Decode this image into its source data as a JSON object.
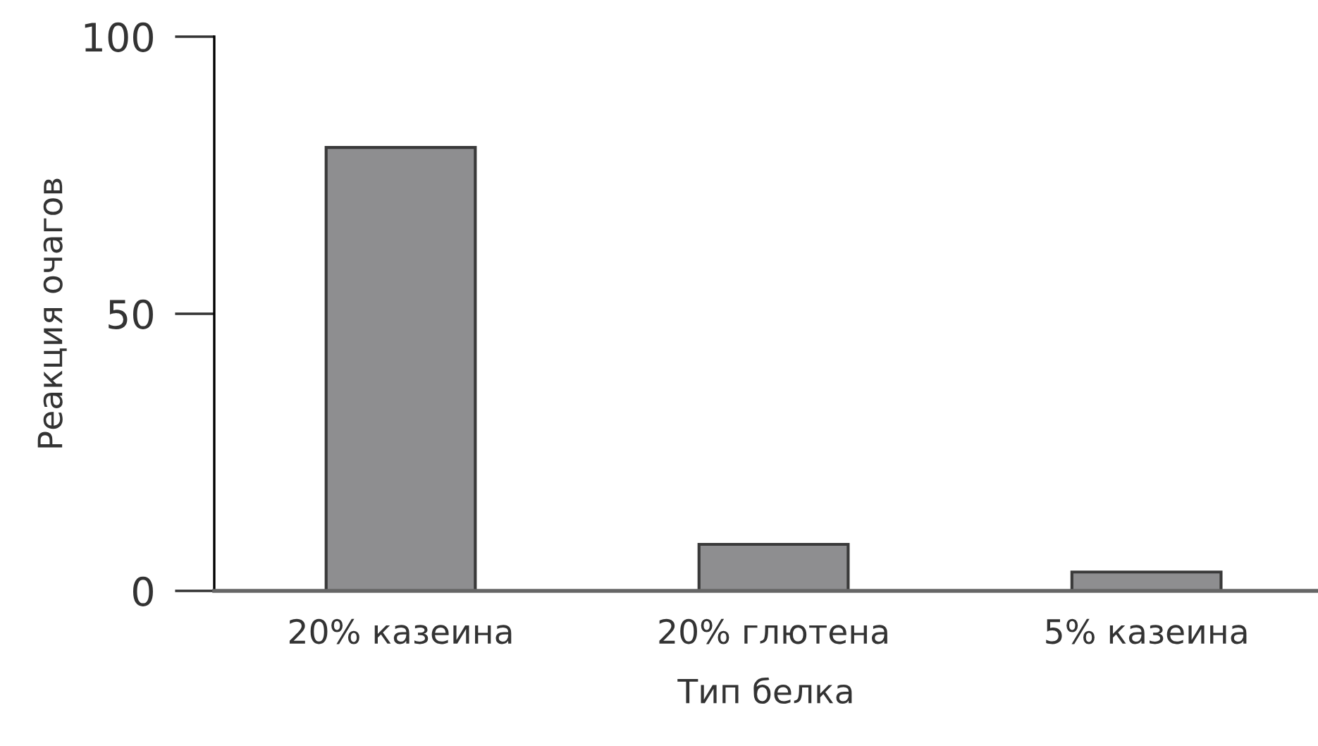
{
  "chart_data": {
    "type": "bar",
    "xlabel": "Тип белка",
    "ylabel": "Реакция очагов",
    "categories": [
      "20% казеина",
      "20% глютена",
      "5% казеина"
    ],
    "values": [
      80,
      8.4,
      3.4
    ],
    "color": "#8e8e90",
    "ylim": [
      0,
      100
    ],
    "yticks": [
      0,
      50,
      100
    ],
    "grid": false,
    "legend": false
  }
}
